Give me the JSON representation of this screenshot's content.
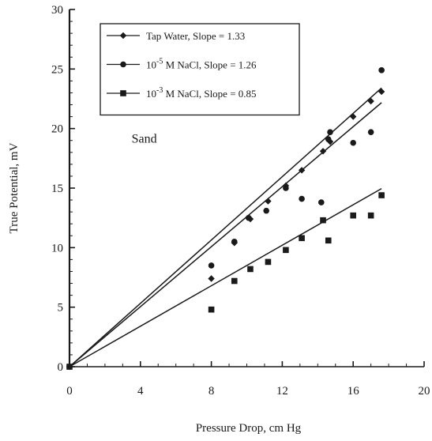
{
  "chart_data": {
    "type": "scatter",
    "title": "",
    "xlabel": "Pressure Drop, cm Hg",
    "ylabel": "True Potential, mV",
    "xlim": [
      0,
      20
    ],
    "ylim": [
      0,
      30
    ],
    "x_ticks": [
      0,
      4,
      8,
      12,
      16,
      20
    ],
    "y_ticks": [
      0,
      5,
      10,
      15,
      20,
      25,
      30
    ],
    "grid": false,
    "legend_position": "top-left",
    "annotation": "Sand",
    "series": [
      {
        "name": "Tap Water, Slope = 1.33",
        "legend_prefix": "",
        "legend_exponent": "",
        "legend_suffix": "Tap Water, Slope = 1.33",
        "marker": "diamond",
        "points": [
          [
            0,
            0
          ],
          [
            8,
            7.4
          ],
          [
            9.3,
            10.4
          ],
          [
            10.2,
            12.4
          ],
          [
            11.2,
            13.9
          ],
          [
            12.2,
            15.2
          ],
          [
            13.1,
            16.5
          ],
          [
            14.3,
            18.1
          ],
          [
            14.7,
            18.9
          ],
          [
            16,
            21
          ],
          [
            17,
            22.3
          ],
          [
            17.6,
            23.1
          ]
        ],
        "fit_slope": 1.33,
        "fit_x_max": 17.6
      },
      {
        "name": "10-5 M NaCl, Slope = 1.26",
        "legend_prefix": "10",
        "legend_exponent": "-5",
        "legend_suffix": " M NaCl, Slope = 1.26",
        "marker": "circle",
        "points": [
          [
            0,
            0
          ],
          [
            8,
            8.5
          ],
          [
            9.3,
            10.5
          ],
          [
            10.1,
            12.5
          ],
          [
            11.1,
            13.1
          ],
          [
            12.2,
            15
          ],
          [
            13.1,
            14.1
          ],
          [
            14.2,
            13.8
          ],
          [
            14.7,
            19.7
          ],
          [
            14.6,
            19.1
          ],
          [
            16,
            18.8
          ],
          [
            17,
            19.7
          ],
          [
            17.6,
            24.9
          ]
        ],
        "fit_slope": 1.26,
        "fit_x_max": 17.6
      },
      {
        "name": "10-3 M NaCl, Slope = 0.85",
        "legend_prefix": "10",
        "legend_exponent": "-3",
        "legend_suffix": " M NaCl, Slope = 0.85",
        "marker": "square",
        "points": [
          [
            0,
            0
          ],
          [
            8,
            4.8
          ],
          [
            9.3,
            7.2
          ],
          [
            10.2,
            8.2
          ],
          [
            11.2,
            8.8
          ],
          [
            12.2,
            9.8
          ],
          [
            13.1,
            10.8
          ],
          [
            14.3,
            12.3
          ],
          [
            14.6,
            10.6
          ],
          [
            16,
            12.7
          ],
          [
            17,
            12.7
          ],
          [
            17.6,
            14.4
          ]
        ],
        "fit_slope": 0.85,
        "fit_x_max": 17.6
      }
    ]
  }
}
